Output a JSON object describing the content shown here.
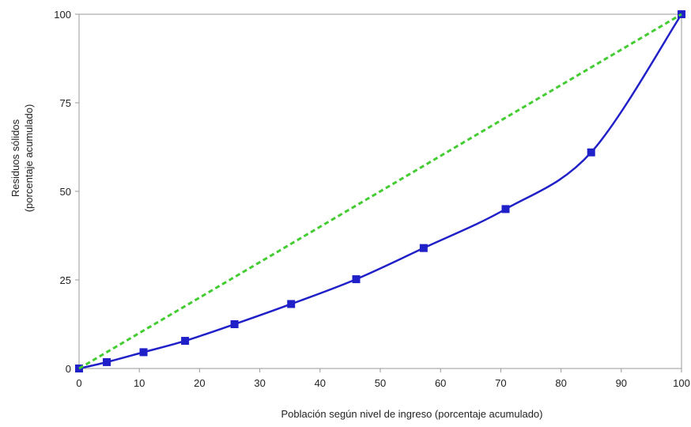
{
  "chart_data": {
    "type": "line",
    "xlabel": "Población según nivel de ingreso (porcentaje acumulado)",
    "ylabel_line1": "Residuos sólidos",
    "ylabel_line2": "(porcentaje acumulado)",
    "xlim": [
      0,
      100
    ],
    "ylim": [
      0,
      100
    ],
    "xticks": [
      0,
      10,
      20,
      30,
      40,
      50,
      60,
      70,
      80,
      90,
      100
    ],
    "yticks": [
      0,
      25,
      50,
      75,
      100
    ],
    "grid": false,
    "series": [
      {
        "style": "solid",
        "marker": "square",
        "color": "#2020c8",
        "x": [
          0,
          4.6,
          10.7,
          17.6,
          25.8,
          35.2,
          46.0,
          57.2,
          70.8,
          85.0,
          100
        ],
        "y": [
          0,
          1.8,
          4.6,
          7.8,
          12.5,
          18.2,
          25.2,
          34.0,
          45.0,
          61.0,
          100
        ]
      },
      {
        "style": "dashed",
        "color": "#44cc33",
        "x": [
          0,
          100
        ],
        "y": [
          0,
          100
        ]
      }
    ]
  }
}
